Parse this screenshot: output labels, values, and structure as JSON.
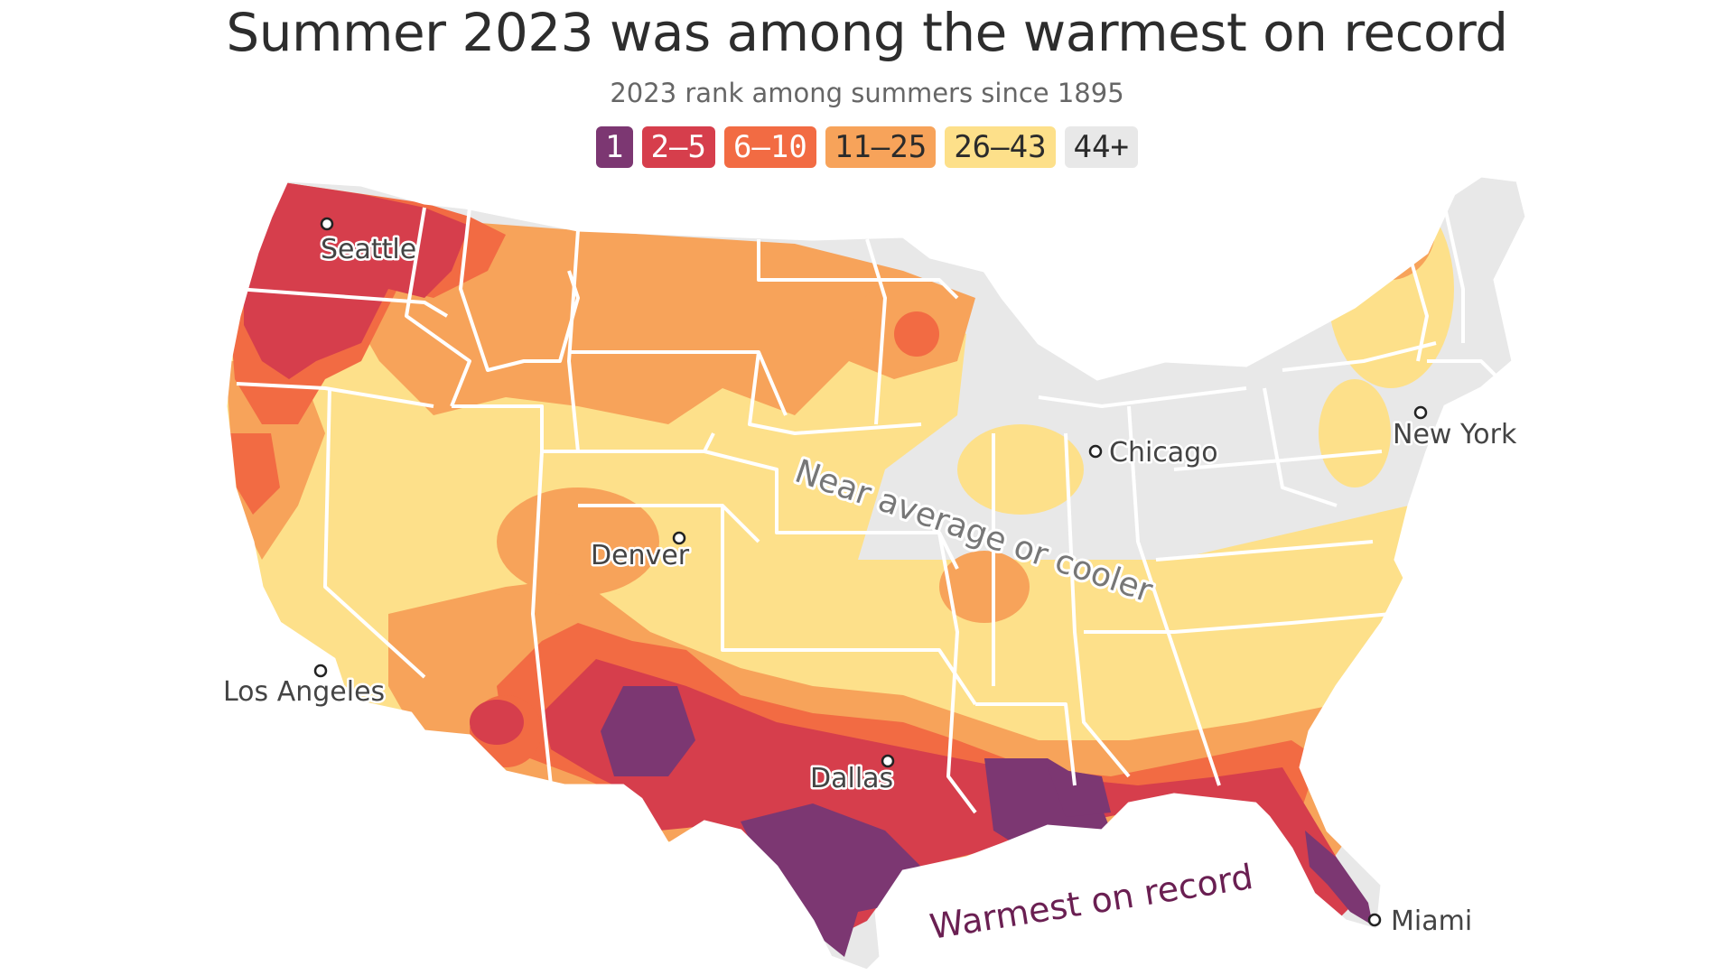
{
  "title": "Summer 2023 was among the warmest on record",
  "subtitle": "2023 rank among summers since 1895",
  "legend": [
    {
      "label": "1",
      "color": "#7c3772"
    },
    {
      "label": "2–5",
      "color": "#d63e4c"
    },
    {
      "label": "6–10",
      "color": "#f26b43"
    },
    {
      "label": "11–25",
      "color": "#f7a35a"
    },
    {
      "label": "26–43",
      "color": "#fde08a"
    },
    {
      "label": "44+",
      "color": "#e8e8e8"
    }
  ],
  "annotations": {
    "cool": "Near average or cooler",
    "warm": "Warmest on record"
  },
  "cities": {
    "seattle": "Seattle",
    "los_angeles": "Los Angeles",
    "denver": "Denver",
    "dallas": "Dallas",
    "chicago": "Chicago",
    "new_york": "New York",
    "miami": "Miami"
  }
}
